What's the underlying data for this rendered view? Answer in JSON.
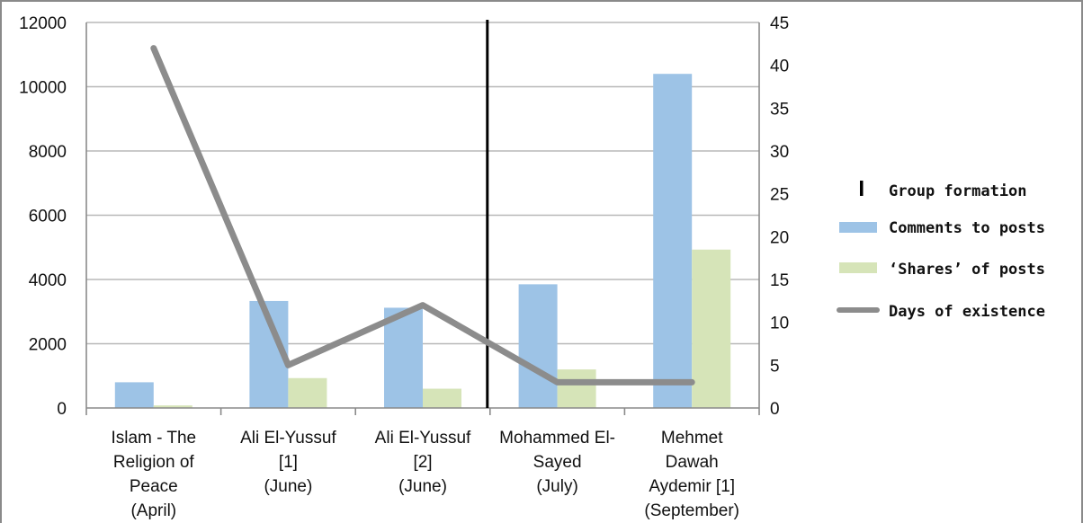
{
  "chart_data": {
    "type": "bar",
    "categories": [
      [
        "Islam - The",
        "Religion of",
        "Peace",
        "(April)"
      ],
      [
        "Ali El-Yussuf",
        "[1]",
        "(June)"
      ],
      [
        "Ali El-Yussuf",
        "[2]",
        "(June)"
      ],
      [
        "Mohammed El-",
        "Sayed",
        "(July)"
      ],
      [
        "Mehmet",
        "Dawah",
        "Aydemir [1]",
        "(September)"
      ]
    ],
    "series": [
      {
        "name": "Comments to posts",
        "type": "bar",
        "axis": "left",
        "color": "#9dc3e6",
        "values": [
          800,
          3330,
          3120,
          3850,
          10400
        ]
      },
      {
        "name": "‘Shares’ of posts",
        "type": "bar",
        "axis": "left",
        "color": "#d6e4b8",
        "values": [
          80,
          930,
          600,
          1200,
          4930
        ]
      },
      {
        "name": "Days of existence",
        "type": "line",
        "axis": "right",
        "color": "#8c8c8c",
        "values": [
          42,
          5,
          12,
          3,
          3
        ]
      }
    ],
    "group_formation": {
      "name": "Group formation",
      "between_categories": [
        2,
        3
      ],
      "color": "#000000"
    },
    "left_axis": {
      "min": 0,
      "max": 12000,
      "ticks": [
        0,
        2000,
        4000,
        6000,
        8000,
        10000,
        12000
      ]
    },
    "right_axis": {
      "min": 0,
      "max": 45,
      "ticks": [
        0,
        5,
        10,
        15,
        20,
        25,
        30,
        35,
        40,
        45
      ]
    },
    "grid": true,
    "legend_position": "right"
  }
}
